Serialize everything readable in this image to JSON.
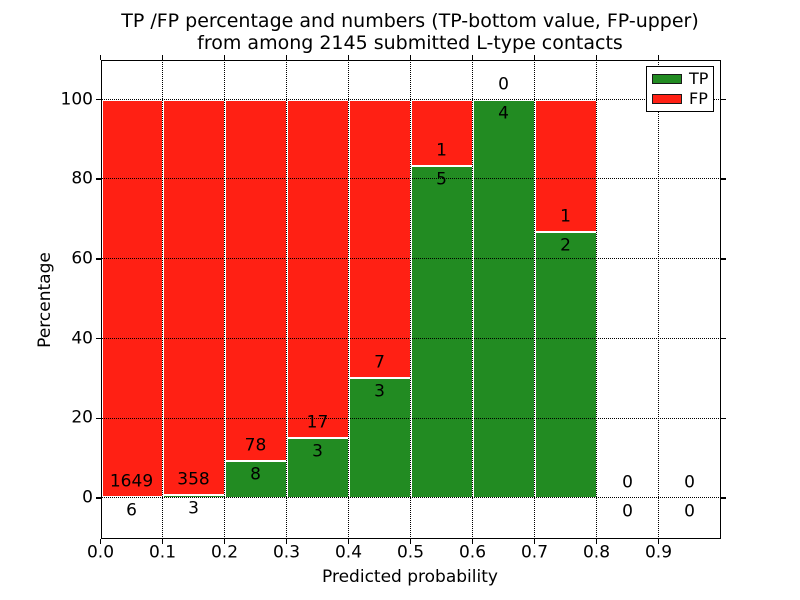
{
  "chart_data": {
    "type": "stacked-bar",
    "title_line1": "TP /FP percentage and numbers (TP-bottom value, FP-upper)",
    "title_line2": "from among 2145 submitted L-type contacts",
    "xlabel": "Predicted probability",
    "ylabel": "Percentage",
    "x_tick_labels": [
      "0.0",
      "0.1",
      "0.2",
      "0.3",
      "0.4",
      "0.5",
      "0.6",
      "0.7",
      "0.8",
      "0.9"
    ],
    "y_tick_labels": [
      "0",
      "20",
      "40",
      "60",
      "80",
      "100"
    ],
    "y_ticks": [
      0,
      20,
      40,
      60,
      80,
      100
    ],
    "xlim": [
      0.0,
      1.0
    ],
    "ylim": [
      -10,
      110
    ],
    "grid_style": "dotted",
    "bar_width": 0.1,
    "total_contacts": 2145,
    "legend_labels": [
      "TP",
      "FP"
    ],
    "legend_position": "upper-right",
    "colors": {
      "tp": "#228b22",
      "fp": "#ff2014",
      "grid": "#000000",
      "bar_edge": "#ffffff"
    },
    "bins": [
      {
        "x_start": 0.0,
        "x_end": 0.1,
        "tp": 6,
        "fp": 1649,
        "tp_pct": 0.36
      },
      {
        "x_start": 0.1,
        "x_end": 0.2,
        "tp": 3,
        "fp": 358,
        "tp_pct": 0.83
      },
      {
        "x_start": 0.2,
        "x_end": 0.3,
        "tp": 8,
        "fp": 78,
        "tp_pct": 9.3
      },
      {
        "x_start": 0.3,
        "x_end": 0.4,
        "tp": 3,
        "fp": 17,
        "tp_pct": 15.0
      },
      {
        "x_start": 0.4,
        "x_end": 0.5,
        "tp": 3,
        "fp": 7,
        "tp_pct": 30.0
      },
      {
        "x_start": 0.5,
        "x_end": 0.6,
        "tp": 5,
        "fp": 1,
        "tp_pct": 83.33
      },
      {
        "x_start": 0.6,
        "x_end": 0.7,
        "tp": 4,
        "fp": 0,
        "tp_pct": 100.0
      },
      {
        "x_start": 0.7,
        "x_end": 0.8,
        "tp": 2,
        "fp": 1,
        "tp_pct": 66.67
      },
      {
        "x_start": 0.8,
        "x_end": 0.9,
        "tp": 0,
        "fp": 0,
        "tp_pct": null
      },
      {
        "x_start": 0.9,
        "x_end": 1.0,
        "tp": 0,
        "fp": 0,
        "tp_pct": null
      }
    ]
  }
}
